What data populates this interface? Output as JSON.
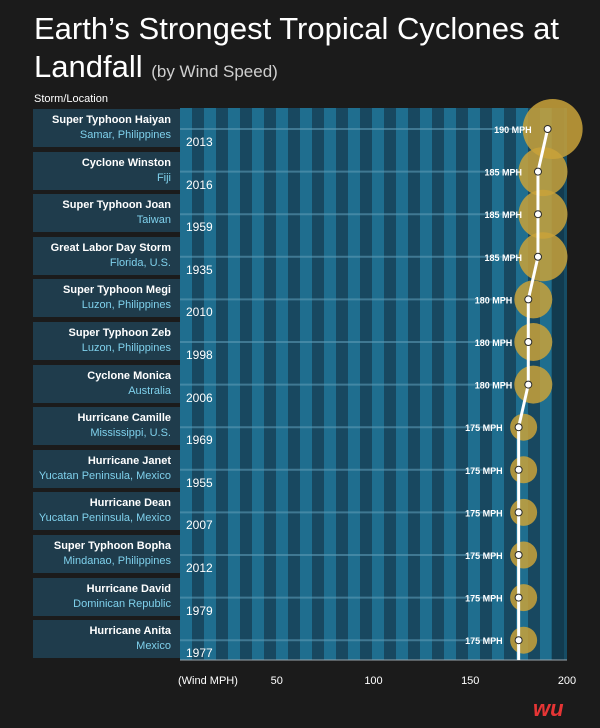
{
  "title_main": "Earth’s Strongest Tropical Cyclones at Landfall",
  "title_sub": "(by Wind Speed)",
  "storm_location_header": "Storm/Location",
  "logo_text": "wu",
  "colors": {
    "background": "#1b1b1b",
    "plot_band_dark": "#184860",
    "plot_band_light": "#1f6e8f",
    "label_box": "#1f3c4c",
    "location_text": "#7fd1ec",
    "bubble_gold": "#c9a23a",
    "line": "#ffffff"
  },
  "chart_data": {
    "type": "line",
    "title": "Earth’s Strongest Tropical Cyclones at Landfall (by Wind Speed)",
    "xlabel": "(Wind MPH)",
    "ylabel": "Storm/Location",
    "xlim": [
      0,
      200
    ],
    "x_ticks": [
      50,
      100,
      150,
      200
    ],
    "storms": [
      {
        "name": "Super Typhoon Haiyan",
        "location": "Samar, Philippines",
        "year": "2013",
        "wind_mph": 190,
        "value_label": "190 MPH"
      },
      {
        "name": "Cyclone Winston",
        "location": "Fiji",
        "year": "2016",
        "wind_mph": 185,
        "value_label": "185 MPH"
      },
      {
        "name": "Super Typhoon Joan",
        "location": "Taiwan",
        "year": "1959",
        "wind_mph": 185,
        "value_label": "185 MPH"
      },
      {
        "name": "Great Labor Day Storm",
        "location": "Florida, U.S.",
        "year": "1935",
        "wind_mph": 185,
        "value_label": "185 MPH"
      },
      {
        "name": "Super Typhoon Megi",
        "location": "Luzon, Philippines",
        "year": "2010",
        "wind_mph": 180,
        "value_label": "180 MPH"
      },
      {
        "name": "Super Typhoon Zeb",
        "location": "Luzon, Philippines",
        "year": "1998",
        "wind_mph": 180,
        "value_label": "180 MPH"
      },
      {
        "name": "Cyclone Monica",
        "location": "Australia",
        "year": "2006",
        "wind_mph": 180,
        "value_label": "180 MPH"
      },
      {
        "name": "Hurricane Camille",
        "location": "Mississippi, U.S.",
        "year": "1969",
        "wind_mph": 175,
        "value_label": "175 MPH"
      },
      {
        "name": "Hurricane Janet",
        "location": "Yucatan Peninsula, Mexico",
        "year": "1955",
        "wind_mph": 175,
        "value_label": "175 MPH"
      },
      {
        "name": "Hurricane Dean",
        "location": "Yucatan Peninsula, Mexico",
        "year": "2007",
        "wind_mph": 175,
        "value_label": "175 MPH"
      },
      {
        "name": "Super Typhoon Bopha",
        "location": "Mindanao, Philippines",
        "year": "2012",
        "wind_mph": 175,
        "value_label": "175 MPH"
      },
      {
        "name": "Hurricane David",
        "location": "Dominican Republic",
        "year": "1979",
        "wind_mph": 175,
        "value_label": "175 MPH"
      },
      {
        "name": "Hurricane Anita",
        "location": "Mexico",
        "year": "1977",
        "wind_mph": 175,
        "value_label": "175 MPH"
      }
    ]
  }
}
